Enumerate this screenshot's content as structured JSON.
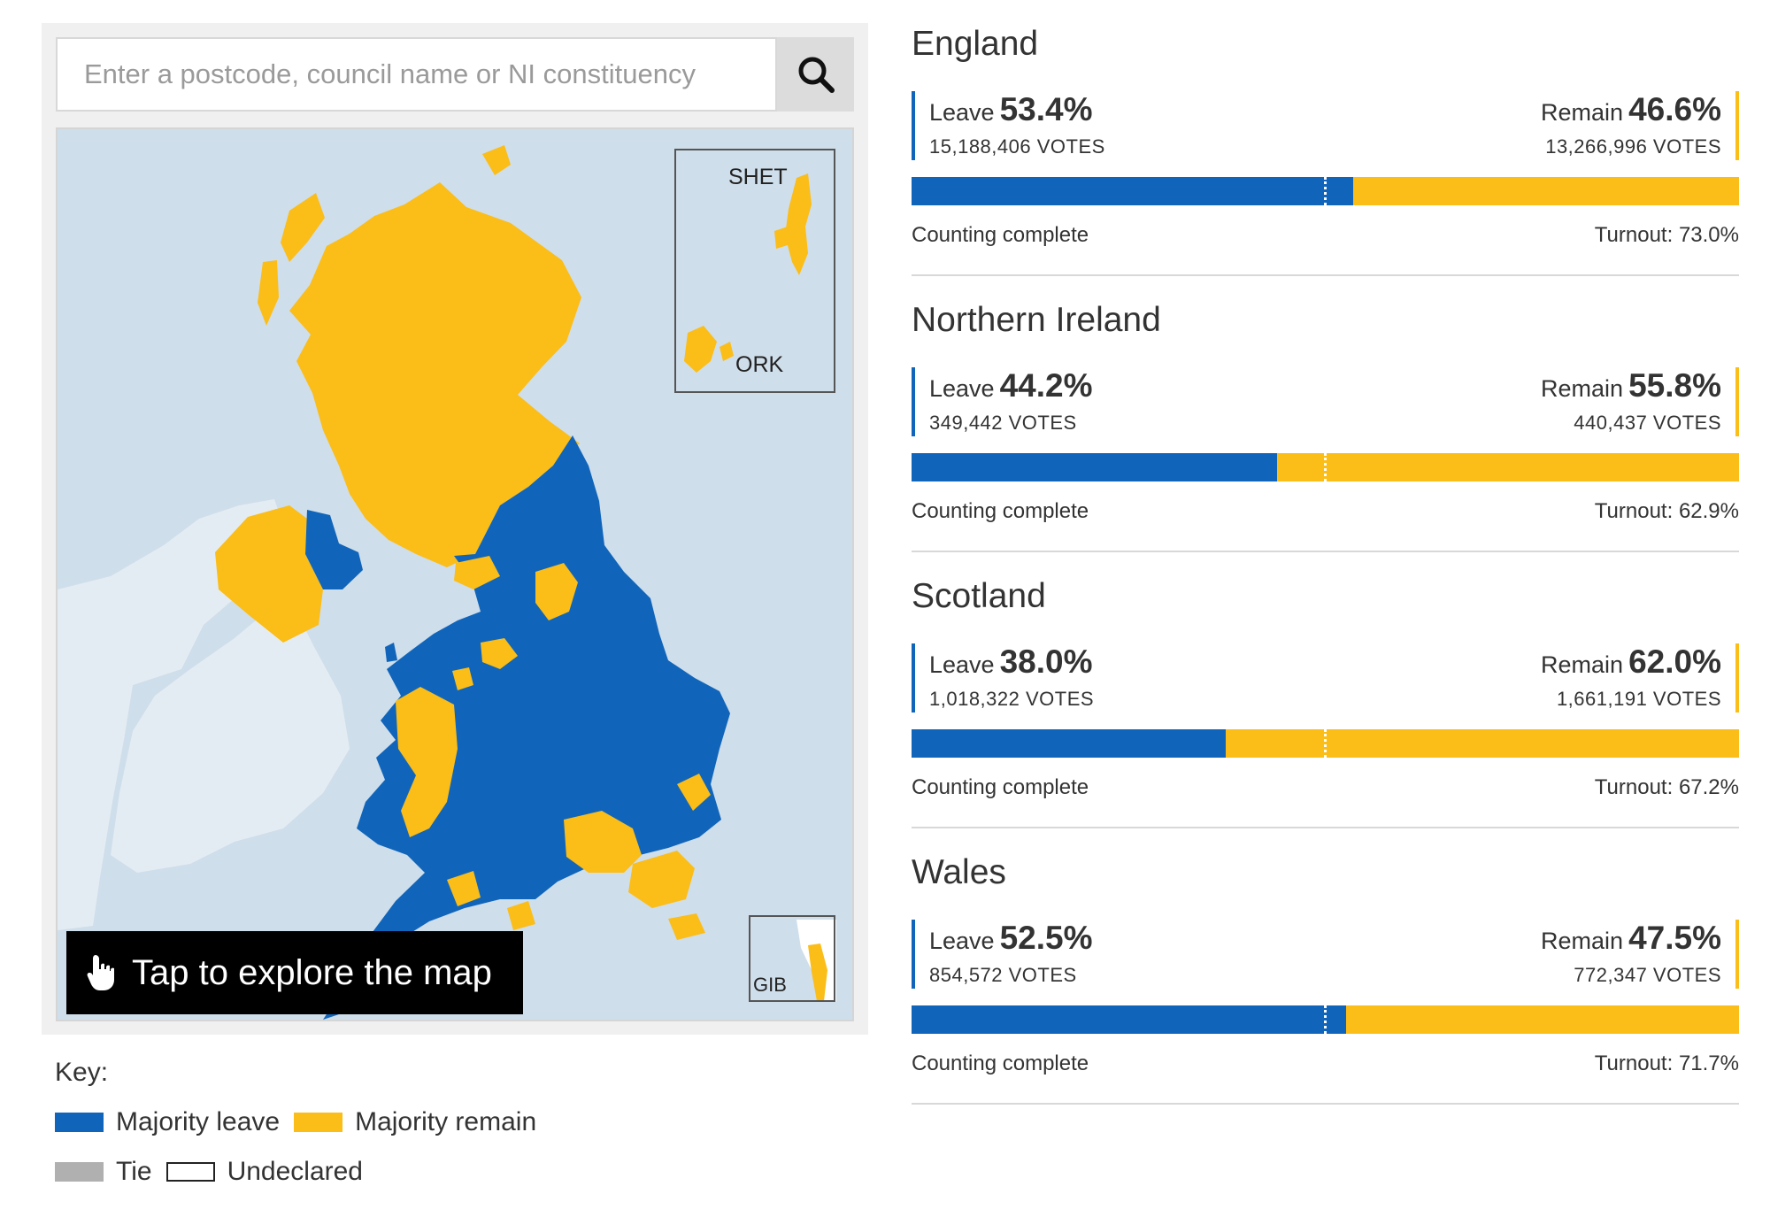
{
  "search": {
    "placeholder": "Enter a postcode, council name or NI constituency"
  },
  "map": {
    "insets": {
      "shetland": "SHET",
      "orkney": "ORK",
      "gibraltar": "GIB"
    },
    "tap_label": "Tap to explore the map",
    "colors": {
      "leave": "#1065ba",
      "remain": "#fbbd18",
      "sea": "#cfdeeb",
      "other_land": "#e4ecf3"
    }
  },
  "key": {
    "title": "Key:",
    "items": [
      {
        "label": "Majority leave",
        "color": "#1065ba"
      },
      {
        "label": "Majority remain",
        "color": "#fbbd18"
      },
      {
        "label": "Tie",
        "color": "#b0b0b0"
      },
      {
        "label": "Undeclared",
        "color": "#ffffff"
      }
    ]
  },
  "results": [
    {
      "name": "England",
      "leave_label": "Leave",
      "leave_pct": "53.4%",
      "leave_votes": "15,188,406 VOTES",
      "remain_label": "Remain",
      "remain_pct": "46.6%",
      "remain_votes": "13,266,996 VOTES",
      "leave_share": 0.534,
      "status": "Counting complete",
      "turnout": "Turnout: 73.0%"
    },
    {
      "name": "Northern Ireland",
      "leave_label": "Leave",
      "leave_pct": "44.2%",
      "leave_votes": "349,442 VOTES",
      "remain_label": "Remain",
      "remain_pct": "55.8%",
      "remain_votes": "440,437 VOTES",
      "leave_share": 0.442,
      "status": "Counting complete",
      "turnout": "Turnout: 62.9%"
    },
    {
      "name": "Scotland",
      "leave_label": "Leave",
      "leave_pct": "38.0%",
      "leave_votes": "1,018,322 VOTES",
      "remain_label": "Remain",
      "remain_pct": "62.0%",
      "remain_votes": "1,661,191 VOTES",
      "leave_share": 0.38,
      "status": "Counting complete",
      "turnout": "Turnout: 67.2%"
    },
    {
      "name": "Wales",
      "leave_label": "Leave",
      "leave_pct": "52.5%",
      "leave_votes": "854,572 VOTES",
      "remain_label": "Remain",
      "remain_pct": "47.5%",
      "remain_votes": "772,347 VOTES",
      "leave_share": 0.525,
      "status": "Counting complete",
      "turnout": "Turnout: 71.7%"
    }
  ]
}
